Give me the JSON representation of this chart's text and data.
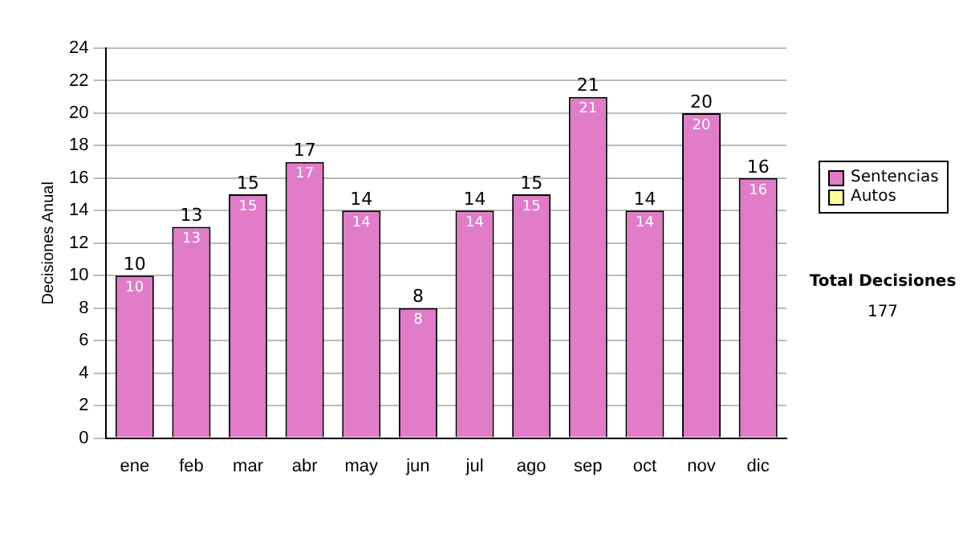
{
  "chart_data": {
    "type": "bar",
    "stacked": true,
    "ylabel": "Decisiones Anual",
    "categories": [
      "ene",
      "feb",
      "mar",
      "abr",
      "may",
      "jun",
      "jul",
      "ago",
      "sep",
      "oct",
      "nov",
      "dic"
    ],
    "series": [
      {
        "name": "Sentencias",
        "color": "#e07cc8",
        "values": [
          10,
          13,
          15,
          17,
          14,
          8,
          14,
          15,
          21,
          14,
          20,
          16
        ],
        "value_labels": [
          "10",
          "13",
          "15",
          "17",
          "14",
          "8",
          "14",
          "15",
          "21",
          "14",
          "20",
          "16"
        ]
      },
      {
        "name": "Autos",
        "color": "#ffff99",
        "values": [
          0,
          0,
          0,
          0,
          0,
          0,
          0,
          0,
          0,
          0,
          0,
          0
        ]
      }
    ],
    "ylim": [
      0,
      24
    ],
    "yticks": [
      0,
      2,
      4,
      6,
      8,
      10,
      12,
      14,
      16,
      18,
      20,
      22,
      24
    ],
    "grid": "y",
    "legend": "right",
    "totals": [
      "10",
      "13",
      "15",
      "17",
      "14",
      "8",
      "14",
      "15",
      "21",
      "14",
      "20",
      "16"
    ],
    "annotations": [
      "Total Decisiones",
      "177"
    ]
  }
}
